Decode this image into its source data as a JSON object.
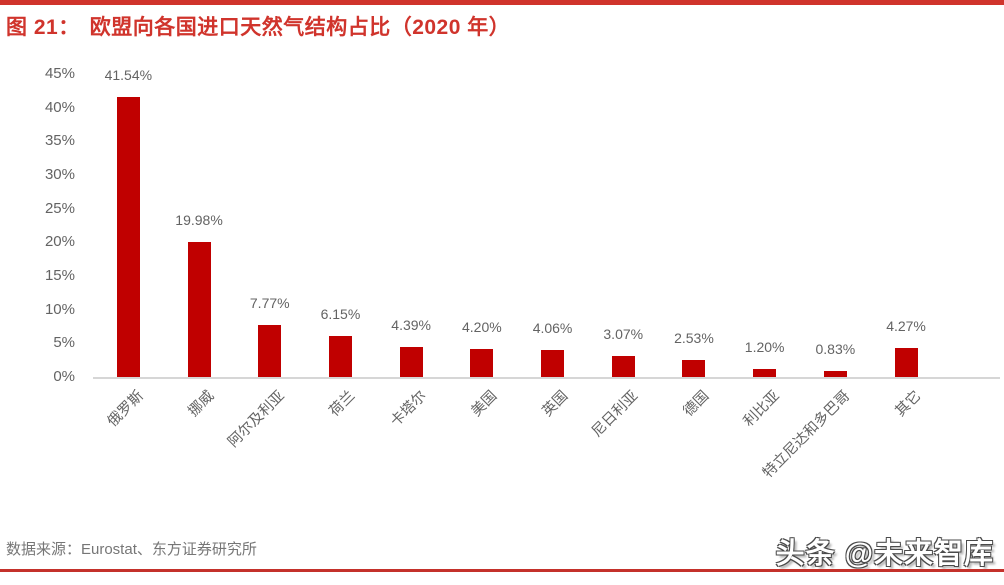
{
  "header": {
    "figure_label": "图 21：",
    "title": "欧盟向各国进口天然气结构占比（2020 年）"
  },
  "chart_data": {
    "type": "bar",
    "title": "欧盟向各国进口天然气结构占比（2020 年）",
    "categories": [
      "俄罗斯",
      "挪威",
      "阿尔及利亚",
      "荷兰",
      "卡塔尔",
      "美国",
      "英国",
      "尼日利亚",
      "德国",
      "利比亚",
      "特立尼达和多巴哥",
      "其它"
    ],
    "values": [
      41.54,
      19.98,
      7.77,
      6.15,
      4.39,
      4.2,
      4.06,
      3.07,
      2.53,
      1.2,
      0.83,
      4.27
    ],
    "value_labels": [
      "41.54%",
      "19.98%",
      "7.77%",
      "6.15%",
      "4.39%",
      "4.20%",
      "4.06%",
      "3.07%",
      "2.53%",
      "1.20%",
      "0.83%",
      "4.27%"
    ],
    "y_ticks": [
      "45%",
      "40%",
      "35%",
      "30%",
      "25%",
      "20%",
      "15%",
      "10%",
      "5%",
      "0%"
    ],
    "ylim": [
      0,
      45
    ],
    "xlabel": "",
    "ylabel": "",
    "grid": false,
    "legend": "none",
    "bar_color": "#c00000"
  },
  "footer": {
    "source": "数据来源：Eurostat、东方证券研究所",
    "watermark": "头条 @未来智库"
  },
  "colors": {
    "accent_red": "#d0342c",
    "accent_line_red": "#c4312b",
    "bar_red": "#c00000",
    "text_gray": "#636363"
  }
}
